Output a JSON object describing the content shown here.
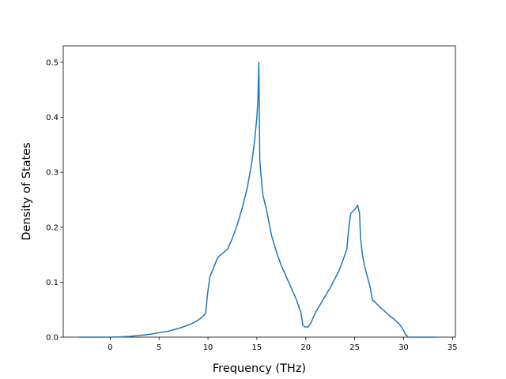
{
  "chart_data": {
    "type": "line",
    "title": "",
    "xlabel": "Frequency (THz)",
    "ylabel": "Density of States",
    "xlim": [
      -4.8,
      35.3
    ],
    "ylim": [
      0,
      0.53
    ],
    "x_ticks": [
      0,
      5,
      10,
      15,
      20,
      25,
      30,
      35
    ],
    "x_tick_labels": [
      "0",
      "5",
      "10",
      "15",
      "20",
      "25",
      "30",
      "35"
    ],
    "y_ticks": [
      0.0,
      0.1,
      0.2,
      0.3,
      0.4,
      0.5
    ],
    "y_tick_labels": [
      "0.0",
      "0.1",
      "0.2",
      "0.3",
      "0.4",
      "0.5"
    ],
    "grid": false,
    "legend": "none",
    "series": [
      {
        "color": "#1f77b4",
        "x": [
          -3.2,
          -2.0,
          -1.0,
          0.0,
          1.0,
          2.0,
          3.0,
          4.0,
          5.0,
          6.0,
          7.0,
          8.0,
          8.5,
          9.0,
          9.5,
          9.75,
          10.0,
          10.2,
          11.0,
          12.0,
          12.5,
          13.0,
          13.5,
          14.0,
          14.5,
          14.75,
          15.0,
          15.1,
          15.2,
          15.3,
          15.6,
          16.0,
          16.5,
          17.0,
          17.5,
          18.0,
          18.5,
          19.0,
          19.5,
          19.7,
          19.9,
          20.2,
          20.5,
          21.0,
          21.5,
          22.0,
          22.5,
          23.0,
          23.5,
          24.0,
          24.2,
          24.4,
          24.6,
          25.0,
          25.3,
          25.5,
          25.6,
          25.8,
          26.0,
          26.3,
          26.6,
          26.8,
          27.0,
          27.5,
          28.0,
          28.5,
          29.0,
          29.5,
          29.8,
          30.0,
          30.2,
          30.5,
          31.0,
          32.0,
          33.0,
          33.4
        ],
        "y": [
          0.0,
          0.0,
          0.0,
          0.0,
          0.0005,
          0.0015,
          0.003,
          0.005,
          0.008,
          0.011,
          0.016,
          0.022,
          0.026,
          0.031,
          0.038,
          0.043,
          0.085,
          0.11,
          0.145,
          0.16,
          0.18,
          0.205,
          0.235,
          0.27,
          0.32,
          0.355,
          0.4,
          0.43,
          0.5,
          0.32,
          0.26,
          0.23,
          0.185,
          0.155,
          0.13,
          0.11,
          0.09,
          0.07,
          0.045,
          0.022,
          0.019,
          0.018,
          0.025,
          0.045,
          0.06,
          0.075,
          0.09,
          0.107,
          0.125,
          0.15,
          0.16,
          0.2,
          0.225,
          0.232,
          0.24,
          0.225,
          0.18,
          0.15,
          0.13,
          0.11,
          0.09,
          0.068,
          0.065,
          0.056,
          0.048,
          0.04,
          0.033,
          0.025,
          0.018,
          0.012,
          0.005,
          0.0,
          0.0,
          0.0,
          0.0,
          0.0
        ]
      }
    ]
  }
}
